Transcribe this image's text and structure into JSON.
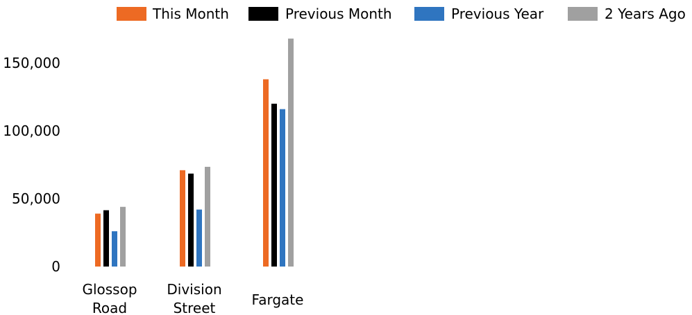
{
  "chart_data": {
    "type": "bar",
    "categories": [
      [
        "Glossop",
        "Road"
      ],
      [
        "Division",
        "Street"
      ],
      [
        "Fargate"
      ]
    ],
    "series": [
      {
        "name": "This Month",
        "color": "#ED6A23",
        "values": [
          39000,
          71000,
          138000
        ]
      },
      {
        "name": "Previous Month",
        "color": "#000000",
        "values": [
          41500,
          68500,
          120000
        ]
      },
      {
        "name": "Previous Year",
        "color": "#2F75C0",
        "values": [
          26000,
          42000,
          116000
        ]
      },
      {
        "name": "2 Years Ago",
        "color": "#A0A0A0",
        "values": [
          44000,
          73500,
          168000
        ]
      }
    ],
    "yticks": [
      "0",
      "50,000",
      "100,000",
      "150,000"
    ],
    "ytick_values": [
      0,
      50000,
      100000,
      150000
    ],
    "ylim": [
      0,
      168000
    ],
    "grid": false,
    "legend_position": "top"
  }
}
